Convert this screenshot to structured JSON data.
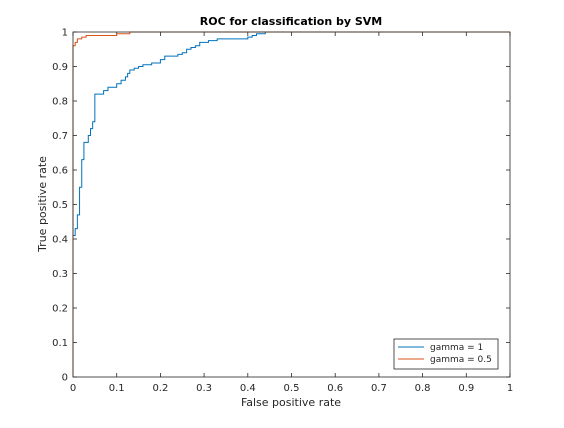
{
  "chart_data": {
    "type": "line",
    "title": "ROC for classification by SVM",
    "xlabel": "False positive rate",
    "ylabel": "True positive rate",
    "xlim": [
      0,
      1
    ],
    "ylim": [
      0,
      1
    ],
    "xticks": [
      "0",
      "0.1",
      "0.2",
      "0.3",
      "0.4",
      "0.5",
      "0.6",
      "0.7",
      "0.8",
      "0.9",
      "1"
    ],
    "yticks": [
      "0",
      "0.1",
      "0.2",
      "0.3",
      "0.4",
      "0.5",
      "0.6",
      "0.7",
      "0.8",
      "0.9",
      "1"
    ],
    "grid": false,
    "legend_position": "bottom-right",
    "series": [
      {
        "name": "gamma = 1",
        "color": "#0072BD",
        "step": true,
        "x": [
          0,
          0,
          0.005,
          0.005,
          0.01,
          0.01,
          0.015,
          0.015,
          0.02,
          0.02,
          0.025,
          0.025,
          0.03,
          0.03,
          0.035,
          0.035,
          0.04,
          0.04,
          0.045,
          0.045,
          0.05,
          0.05,
          0.07,
          0.07,
          0.08,
          0.08,
          0.1,
          0.1,
          0.11,
          0.11,
          0.12,
          0.12,
          0.125,
          0.125,
          0.13,
          0.13,
          0.14,
          0.14,
          0.15,
          0.15,
          0.16,
          0.16,
          0.18,
          0.18,
          0.2,
          0.2,
          0.21,
          0.21,
          0.24,
          0.24,
          0.25,
          0.25,
          0.26,
          0.26,
          0.27,
          0.27,
          0.28,
          0.28,
          0.29,
          0.29,
          0.31,
          0.31,
          0.33,
          0.33,
          0.34,
          0.34,
          0.4,
          0.4,
          0.41,
          0.41,
          0.42,
          0.42,
          0.44,
          0.44,
          0.47,
          0.47,
          1
        ],
        "y": [
          0,
          0.41,
          0.41,
          0.43,
          0.43,
          0.47,
          0.47,
          0.55,
          0.55,
          0.63,
          0.63,
          0.68,
          0.68,
          0.68,
          0.68,
          0.7,
          0.7,
          0.72,
          0.72,
          0.74,
          0.74,
          0.82,
          0.82,
          0.83,
          0.83,
          0.84,
          0.84,
          0.85,
          0.85,
          0.86,
          0.86,
          0.87,
          0.87,
          0.88,
          0.88,
          0.89,
          0.89,
          0.895,
          0.895,
          0.9,
          0.9,
          0.905,
          0.905,
          0.91,
          0.91,
          0.92,
          0.92,
          0.93,
          0.93,
          0.935,
          0.935,
          0.94,
          0.94,
          0.95,
          0.95,
          0.955,
          0.955,
          0.96,
          0.96,
          0.97,
          0.97,
          0.975,
          0.975,
          0.98,
          0.98,
          0.98,
          0.98,
          0.985,
          0.985,
          0.99,
          0.99,
          0.995,
          0.995,
          1.0,
          1.0,
          1.0,
          1.0
        ]
      },
      {
        "name": "gamma = 0.5",
        "color": "#D95319",
        "step": true,
        "x": [
          0,
          0,
          0.005,
          0.005,
          0.01,
          0.01,
          0.02,
          0.02,
          0.03,
          0.03,
          0.04,
          0.04,
          0.1,
          0.1,
          0.13,
          0.13,
          1
        ],
        "y": [
          0,
          0.96,
          0.96,
          0.97,
          0.97,
          0.98,
          0.98,
          0.985,
          0.985,
          0.99,
          0.99,
          0.99,
          0.99,
          0.995,
          0.995,
          1.0,
          1.0
        ]
      }
    ]
  }
}
